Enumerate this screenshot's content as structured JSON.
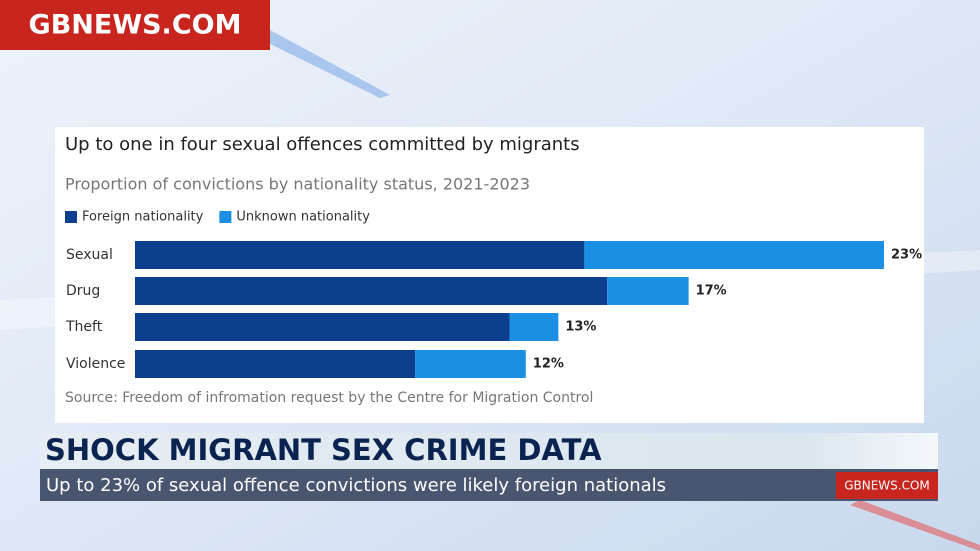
{
  "logo": "GBNEWS.COM",
  "chart_data": {
    "type": "stacked-bar-horizontal",
    "title": "Up to one in four sexual offences committed by migrants",
    "subtitle": "Proportion of convictions by nationality status, 2021-2023",
    "categories": [
      "Sexual",
      "Drug",
      "Theft",
      "Violence"
    ],
    "series": [
      {
        "name": "Foreign nationality",
        "color": "#0d3f8f",
        "values": [
          13.8,
          14.5,
          11.5,
          8.6
        ]
      },
      {
        "name": "Unknown nationality",
        "color": "#1a8fe3",
        "values": [
          9.2,
          2.5,
          1.5,
          3.4
        ]
      }
    ],
    "totals": [
      23,
      17,
      13,
      12
    ],
    "value_labels": [
      "23%",
      "17%",
      "13%",
      "12%"
    ],
    "source": "Source: Freedom of infromation request by the Centre for Migration Control"
  },
  "ticker": {
    "headline": "SHOCK MIGRANT SEX CRIME DATA",
    "subheadline": "Up to 23% of sexual offence convictions were likely foreign nationals",
    "logo": "GBNEWS.COM"
  }
}
